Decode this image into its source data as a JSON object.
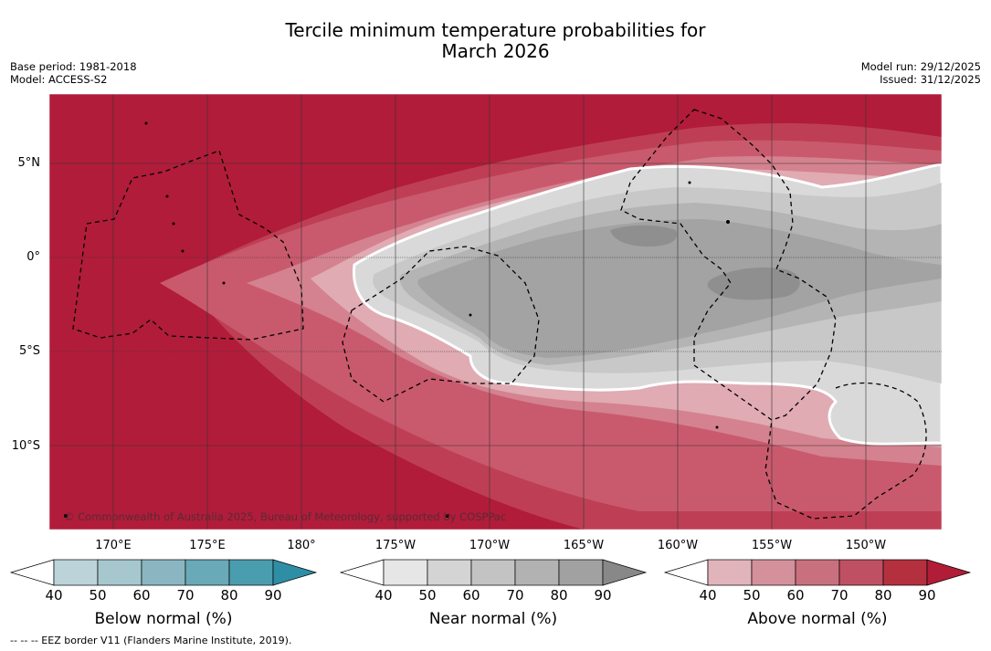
{
  "title_line1": "Tercile minimum temperature probabilities for",
  "title_line2": "March 2026",
  "base_period": "Base period: 1981-2018",
  "model": "Model: ACCESS-S2",
  "model_run": "Model run: 29/12/2025",
  "issued": "Issued: 31/12/2025",
  "copyright": "© Commonwealth of Australia 2025, Bureau of Meteorology, supported by COSPPac",
  "footer": "--  --  -- EEZ border V11 (Flanders Marine Institute, 2019).",
  "lat_labels": [
    "5°N",
    "0°",
    "5°S",
    "10°S"
  ],
  "lon_labels": [
    "170°E",
    "175°E",
    "180°",
    "175°W",
    "170°W",
    "165°W",
    "160°W",
    "155°W",
    "150°W"
  ],
  "colorbars": [
    {
      "label": "Below normal (%)",
      "ticks": [
        "40",
        "50",
        "60",
        "70",
        "80",
        "90"
      ],
      "colors": [
        "#ffffff",
        "#bcd3da",
        "#a6c7cd",
        "#89b6c1",
        "#6aa9b7",
        "#4a9dae",
        "#2e8ea6"
      ]
    },
    {
      "label": "Near normal (%)",
      "ticks": [
        "40",
        "50",
        "60",
        "70",
        "80",
        "90"
      ],
      "colors": [
        "#ffffff",
        "#e6e6e6",
        "#d4d4d4",
        "#c3c3c3",
        "#b2b2b2",
        "#a1a1a1",
        "#888888"
      ]
    },
    {
      "label": "Above normal (%)",
      "ticks": [
        "40",
        "50",
        "60",
        "70",
        "80",
        "90"
      ],
      "colors": [
        "#ffffff",
        "#e1b4bc",
        "#d4919b",
        "#c9707e",
        "#bf5063",
        "#b5303f",
        "#b11c36"
      ]
    }
  ]
}
